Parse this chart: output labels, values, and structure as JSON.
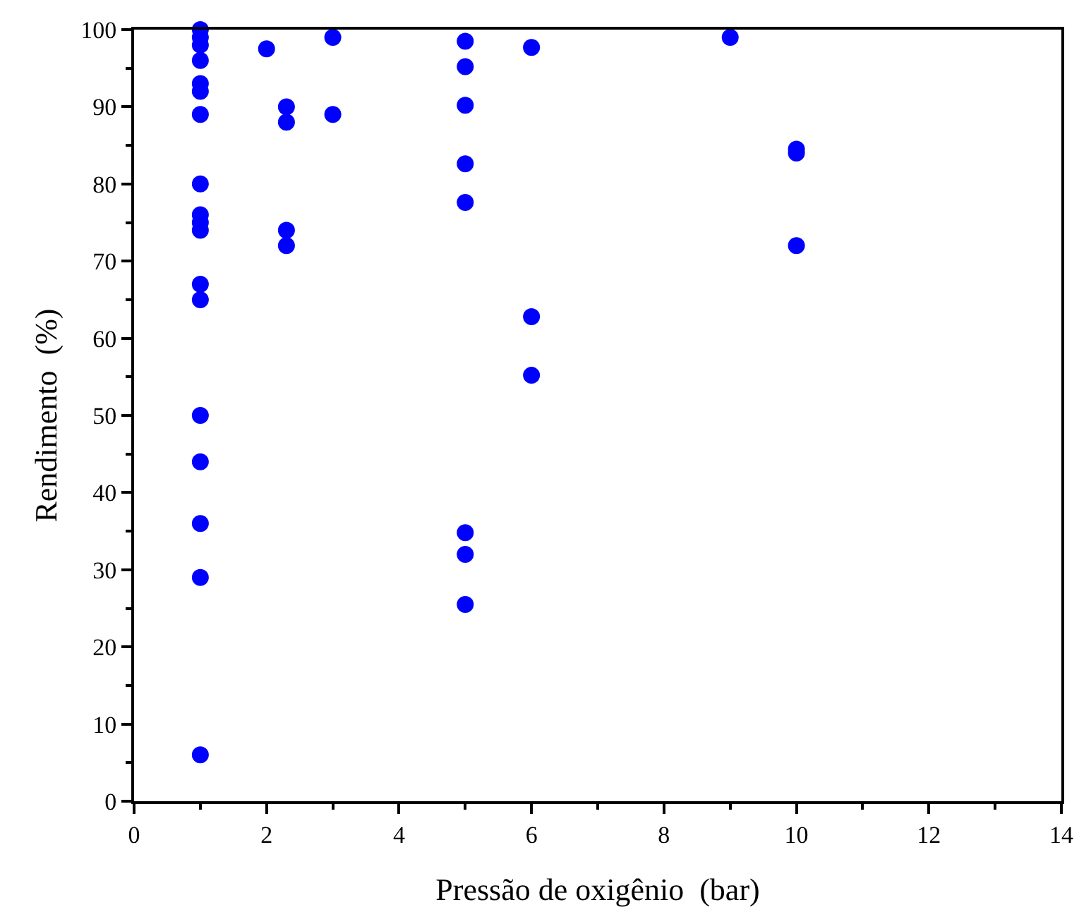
{
  "chart_data": {
    "type": "scatter",
    "xlabel": "Pressão de oxigênio  (bar)",
    "ylabel": "Rendimento  (%)",
    "x": [
      1,
      1,
      1,
      1,
      1,
      1,
      1,
      1,
      1,
      1,
      1,
      1,
      1,
      1,
      1,
      1,
      1,
      1,
      2,
      2.3,
      2.3,
      2.3,
      2.3,
      3,
      3,
      5,
      5,
      5,
      5,
      5,
      5,
      5,
      5,
      6,
      6,
      6,
      9,
      10,
      10,
      10
    ],
    "values": [
      100,
      99,
      98,
      96,
      93,
      92,
      89,
      80,
      76,
      75,
      74,
      67,
      65,
      50,
      44,
      36,
      29,
      6,
      97.5,
      90,
      88,
      74,
      72,
      99,
      89,
      98.5,
      95.2,
      90.2,
      82.6,
      77.6,
      34.8,
      32,
      25.5,
      97.7,
      62.8,
      55.2,
      99,
      84.5,
      84,
      72
    ],
    "color": "#0000ff",
    "marker": "circle",
    "xlim": [
      0,
      14
    ],
    "xticks": [
      0,
      2,
      4,
      6,
      8,
      10,
      12,
      14
    ],
    "ylim": [
      0,
      100
    ],
    "yticks": [
      0,
      10,
      20,
      30,
      40,
      50,
      60,
      70,
      80,
      90,
      100
    ]
  }
}
